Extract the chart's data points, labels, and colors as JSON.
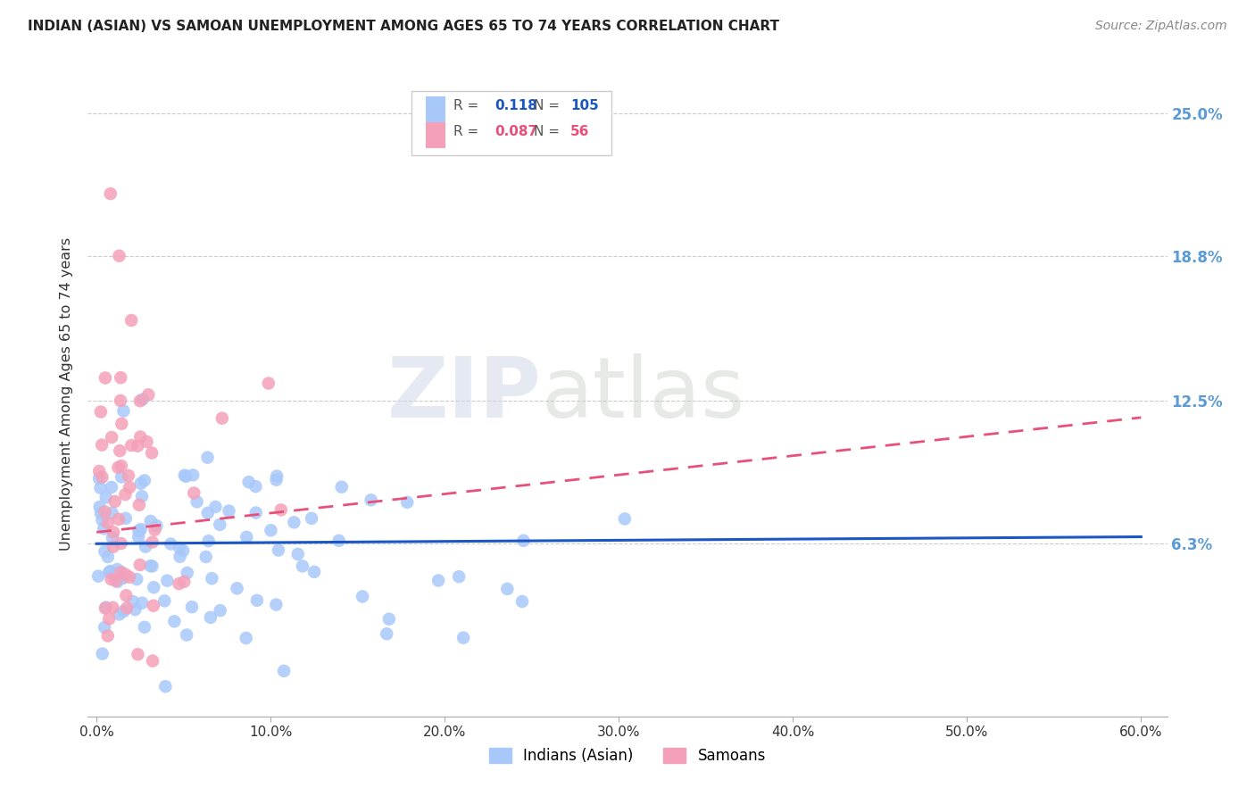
{
  "title": "INDIAN (ASIAN) VS SAMOAN UNEMPLOYMENT AMONG AGES 65 TO 74 YEARS CORRELATION CHART",
  "source": "Source: ZipAtlas.com",
  "ylabel": "Unemployment Among Ages 65 to 74 years",
  "xlim": [
    0.0,
    0.6
  ],
  "ylim": [
    -0.01,
    0.265
  ],
  "xtick_labels": [
    "0.0%",
    "10.0%",
    "20.0%",
    "30.0%",
    "40.0%",
    "50.0%",
    "60.0%"
  ],
  "xtick_vals": [
    0.0,
    0.1,
    0.2,
    0.3,
    0.4,
    0.5,
    0.6
  ],
  "ytick_labels_right": [
    "25.0%",
    "18.8%",
    "12.5%",
    "6.3%"
  ],
  "ytick_vals_right": [
    0.25,
    0.188,
    0.125,
    0.063
  ],
  "indian_color": "#a8c8fa",
  "samoan_color": "#f4a0b8",
  "indian_line_color": "#1a56c4",
  "samoan_line_color": "#e8507a",
  "R_indian": 0.118,
  "N_indian": 105,
  "R_samoan": 0.087,
  "N_samoan": 56,
  "watermark_zip": "ZIP",
  "watermark_atlas": "atlas",
  "background_color": "#ffffff",
  "grid_color": "#cccccc",
  "right_label_color": "#5b9bd5"
}
